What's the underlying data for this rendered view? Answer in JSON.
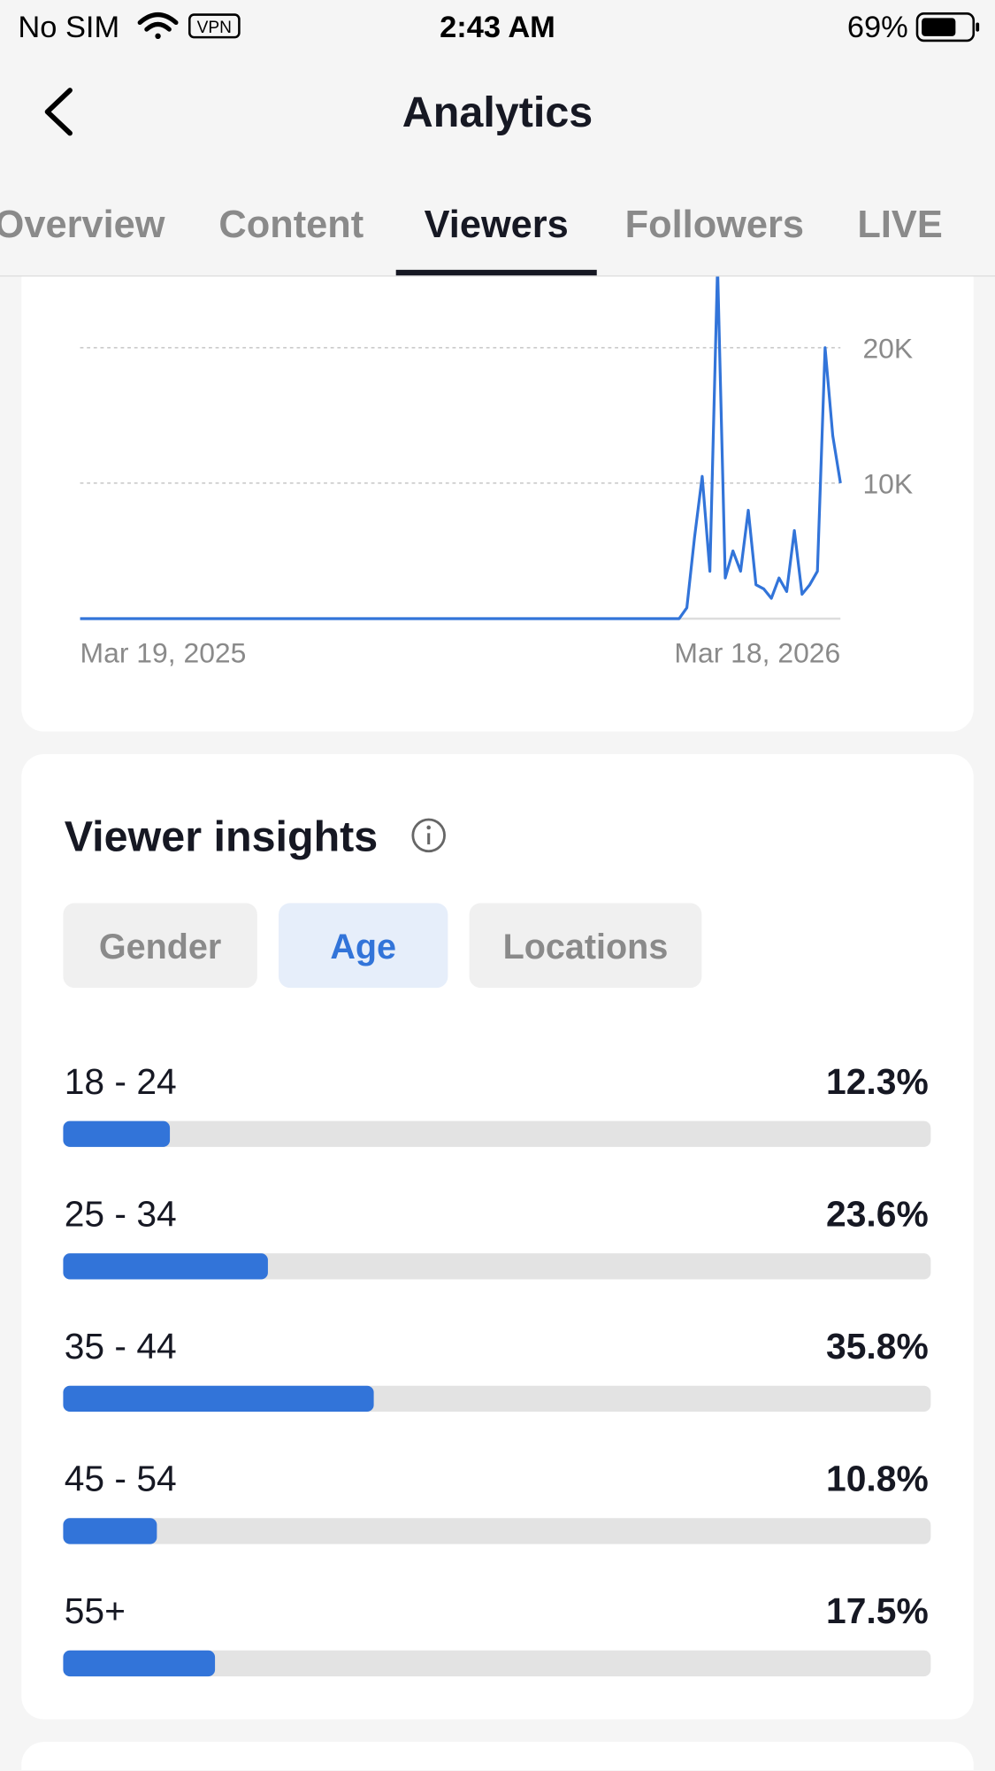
{
  "status_bar": {
    "carrier": "No SIM",
    "vpn": "VPN",
    "time": "2:43 AM",
    "battery": "69%"
  },
  "header": {
    "title": "Analytics"
  },
  "tabs": [
    "Overview",
    "Content",
    "Viewers",
    "Followers",
    "LIVE"
  ],
  "insights": {
    "title": "Viewer insights",
    "filters": [
      "Gender",
      "Age",
      "Locations"
    ]
  },
  "chart_data": [
    {
      "type": "line",
      "categories": [
        "Mar 19, 2025",
        null,
        null,
        null,
        null,
        null,
        null,
        null,
        null,
        null,
        null,
        null,
        null,
        null,
        null,
        null,
        null,
        null,
        null,
        null,
        null,
        null,
        null,
        null,
        null,
        null,
        null,
        null,
        null,
        null,
        null,
        null,
        null,
        null,
        null,
        null,
        null,
        null,
        null,
        null,
        null,
        null,
        null,
        null,
        null,
        null,
        null,
        null,
        null,
        null,
        null,
        null,
        null,
        null,
        null,
        null,
        null,
        null,
        null,
        null,
        null,
        null,
        null,
        null,
        null,
        null,
        null,
        null,
        null,
        null,
        null,
        null,
        null,
        null,
        null,
        null,
        null,
        null,
        null,
        null,
        null,
        null,
        null,
        null,
        null,
        null,
        null,
        null,
        null,
        null,
        null,
        null,
        null,
        null,
        null,
        null,
        null,
        null,
        null,
        "Mar 18, 2026"
      ],
      "series": [
        {
          "color": "#3274d9",
          "values": [
            0,
            0,
            0,
            0,
            0,
            0,
            0,
            0,
            0,
            0,
            0,
            0,
            0,
            0,
            0,
            0,
            0,
            0,
            0,
            0,
            0,
            0,
            0,
            0,
            0,
            0,
            0,
            0,
            0,
            0,
            0,
            0,
            0,
            0,
            0,
            0,
            0,
            0,
            0,
            0,
            0,
            0,
            0,
            0,
            0,
            0,
            0,
            0,
            0,
            0,
            0,
            0,
            0,
            0,
            0,
            0,
            0,
            0,
            0,
            0,
            0,
            0,
            0,
            0,
            0,
            0,
            0,
            0,
            0,
            0,
            0,
            0,
            0,
            0,
            0,
            0,
            0,
            0,
            0,
            800,
            6000,
            10500,
            3500,
            26000,
            3000,
            5000,
            3500,
            8000,
            2500,
            2200,
            1500,
            3000,
            2000,
            6500,
            1800,
            2500,
            3500,
            20000,
            13500,
            10000
          ]
        }
      ],
      "ylim": [
        0,
        25000
      ],
      "yticks": [
        {
          "value": 10000,
          "label": "10K"
        },
        {
          "value": 20000,
          "label": "20K"
        }
      ],
      "grid": true
    },
    {
      "type": "hbar",
      "categories": [
        "18 - 24",
        "25 - 34",
        "35 - 44",
        "45 - 54",
        "55+"
      ],
      "values": [
        12.3,
        23.6,
        35.8,
        10.8,
        17.5
      ],
      "value_labels": [
        "12.3%",
        "23.6%",
        "35.8%",
        "10.8%",
        "17.5%"
      ],
      "color": "#3274d9",
      "xlim": [
        0,
        100
      ]
    }
  ]
}
